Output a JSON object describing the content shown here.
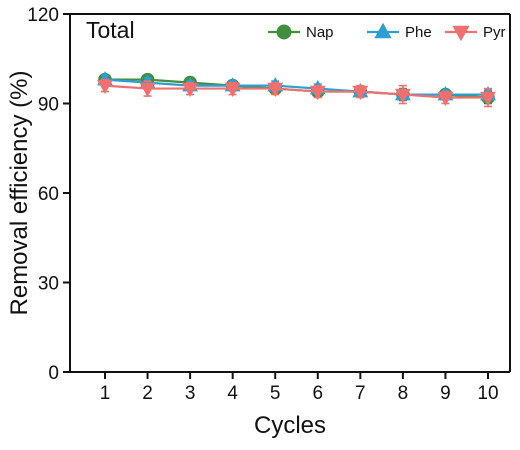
{
  "chart_data": {
    "type": "line",
    "title": "Total",
    "xlabel": "Cycles",
    "ylabel": "Removal efficiency (%)",
    "categories": [
      "1",
      "2",
      "3",
      "4",
      "5",
      "6",
      "7",
      "8",
      "9",
      "10"
    ],
    "ylim": [
      0,
      120
    ],
    "yticks": [
      "0",
      "30",
      "60",
      "90",
      "120"
    ],
    "grid": false,
    "legend_position": "top-right",
    "series": [
      {
        "name": "Nap",
        "color": "#3f8f3f",
        "marker": "circle",
        "values": [
          98,
          98,
          97,
          96,
          95,
          94,
          94,
          93,
          93,
          92
        ],
        "errors": [
          1.5,
          1.5,
          1.5,
          1.5,
          1.5,
          1.5,
          1.5,
          2.0,
          1.5,
          2.0
        ]
      },
      {
        "name": "Phe",
        "color": "#2e9fd6",
        "marker": "triangle-up",
        "values": [
          98,
          97,
          96,
          96,
          96,
          95,
          94,
          93,
          93,
          93
        ],
        "errors": [
          1.5,
          1.5,
          1.5,
          1.5,
          1.5,
          1.5,
          1.5,
          1.5,
          1.5,
          1.5
        ]
      },
      {
        "name": "Pyr",
        "color": "#f07070",
        "marker": "triangle-down",
        "values": [
          96,
          95,
          95,
          95,
          95,
          94,
          94,
          93,
          92,
          92
        ],
        "errors": [
          2.0,
          2.5,
          2.0,
          2.0,
          2.0,
          2.0,
          2.0,
          3.0,
          2.0,
          3.0
        ]
      }
    ]
  }
}
